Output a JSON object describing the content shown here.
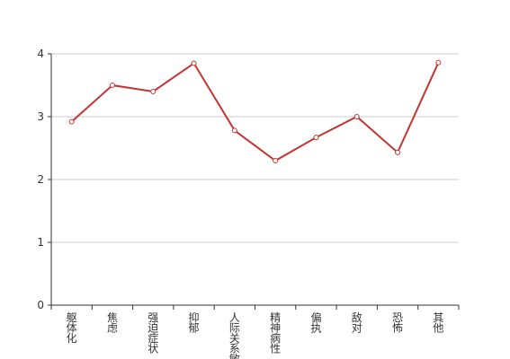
{
  "chart_data": {
    "type": "line",
    "categories": [
      "躯体化",
      "焦虑",
      "强迫症状",
      "抑郁",
      "人际关系敏感",
      "精神病性",
      "偏执",
      "敌对",
      "恐怖",
      "其他"
    ],
    "values": [
      2.92,
      3.5,
      3.4,
      3.85,
      2.78,
      2.3,
      2.67,
      3.0,
      2.43,
      3.86
    ],
    "color": "#c23531",
    "ylim": [
      0,
      4
    ],
    "yticks": [
      0,
      1,
      2,
      3,
      4
    ],
    "grid": true
  }
}
